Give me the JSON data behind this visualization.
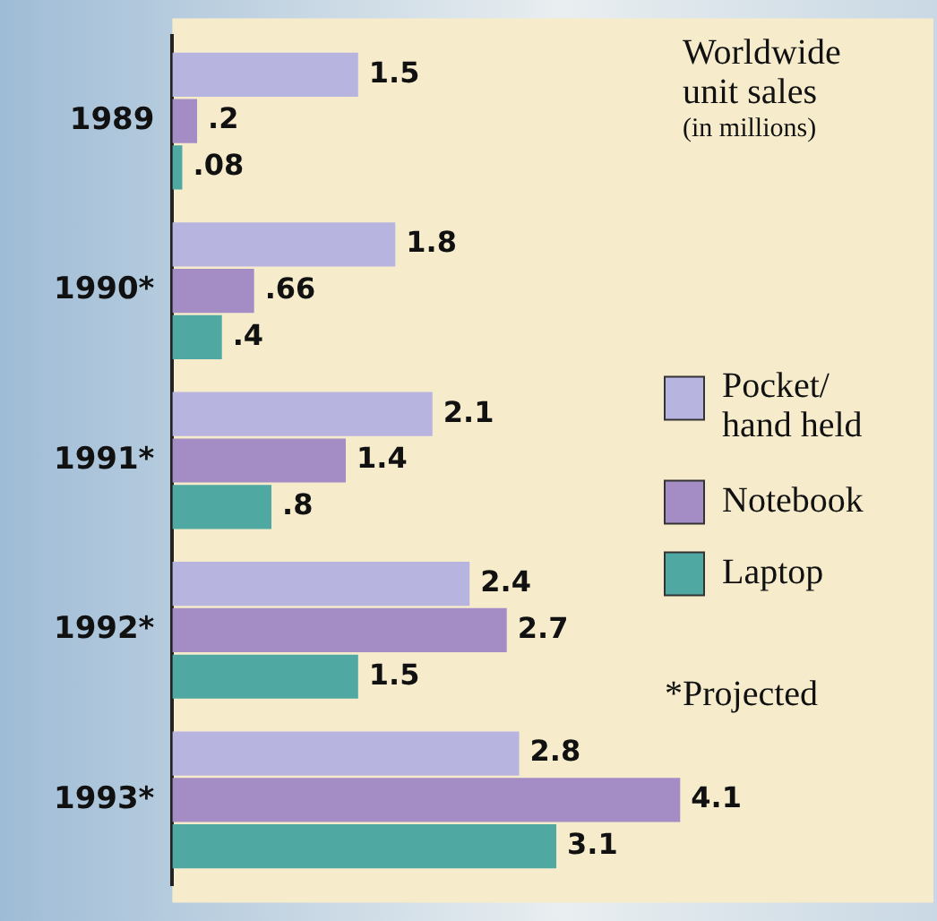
{
  "chart_data": {
    "type": "bar",
    "orientation": "horizontal",
    "title": "Worldwide unit sales",
    "subtitle": "(in millions)",
    "categories": [
      "1989",
      "1990*",
      "1991*",
      "1992*",
      "1993*"
    ],
    "series": [
      {
        "name": "Pocket/ hand held",
        "color": "#b8b4e0",
        "values": [
          1.5,
          1.8,
          2.1,
          2.4,
          2.8
        ],
        "value_labels": [
          "1.5",
          "1.8",
          "2.1",
          "2.4",
          "2.8"
        ]
      },
      {
        "name": "Notebook",
        "color": "#a48cc4",
        "values": [
          0.2,
          0.66,
          1.4,
          2.7,
          4.1
        ],
        "value_labels": [
          ".2",
          ".66",
          "1.4",
          "2.7",
          "4.1"
        ]
      },
      {
        "name": "Laptop",
        "color": "#4fa9a2",
        "values": [
          0.08,
          0.4,
          0.8,
          1.5,
          3.1
        ],
        "value_labels": [
          ".08",
          ".4",
          ".8",
          "1.5",
          "3.1"
        ]
      }
    ],
    "tick_labels": "y",
    "grid": false,
    "legend": "right",
    "annotations": [
      "*Projected"
    ]
  }
}
